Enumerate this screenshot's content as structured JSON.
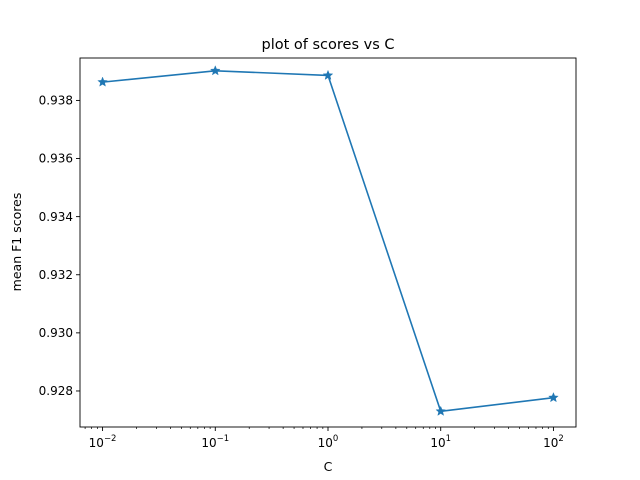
{
  "chart_data": {
    "type": "line",
    "title": "plot of scores vs C",
    "xlabel": "C",
    "ylabel": "mean F1 scores",
    "xscale": "log",
    "x": [
      0.01,
      0.1,
      1,
      10,
      100
    ],
    "xticks": [
      {
        "base": "10",
        "exp": "−2"
      },
      {
        "base": "10",
        "exp": "−1"
      },
      {
        "base": "10",
        "exp": "0"
      },
      {
        "base": "10",
        "exp": "1"
      },
      {
        "base": "10",
        "exp": "2"
      }
    ],
    "yticks": [
      "0.928",
      "0.930",
      "0.932",
      "0.934",
      "0.936",
      "0.938"
    ],
    "ylim": [
      0.92676,
      0.93946
    ],
    "series": [
      {
        "values": [
          0.93863,
          0.93902,
          0.93886,
          0.9273,
          0.92777
        ],
        "color": "#1f77b4",
        "marker": "star"
      }
    ],
    "grid": false,
    "legend": "none"
  }
}
